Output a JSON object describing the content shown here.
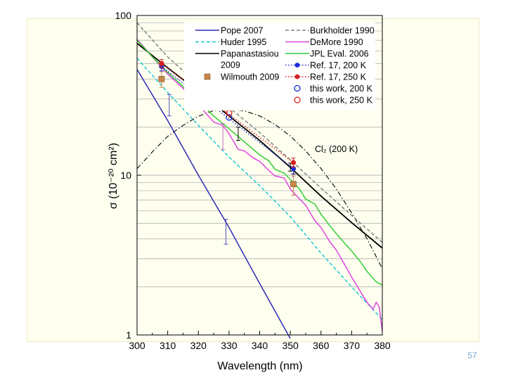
{
  "page": {
    "number": "57"
  },
  "chart_data": {
    "type": "line",
    "xlabel": "Wavelength (nm)",
    "ylabel": "σ (10⁻²⁰ cm²)",
    "xlim": [
      300,
      380
    ],
    "ylim": [
      1,
      100
    ],
    "yscale": "log",
    "x_ticks": [
      300,
      310,
      320,
      330,
      340,
      350,
      360,
      370,
      380
    ],
    "x_tick_labels": [
      "300",
      "310",
      "320",
      "330",
      "340",
      "350",
      "360",
      "370",
      "380"
    ],
    "y_ticks": [
      1,
      10,
      100
    ],
    "y_tick_labels": [
      "1",
      "10",
      "100"
    ],
    "grid": true,
    "legend_position": "top",
    "series": [
      {
        "name": "Pope 2007",
        "style": "solid",
        "color": "#2b2bb5",
        "x": [
          300,
          310,
          320,
          330,
          340,
          350
        ],
        "y": [
          46,
          22,
          10,
          4.7,
          2.1,
          0.95
        ]
      },
      {
        "name": "Huder 1995",
        "style": "dash",
        "color": "#1ec8d8",
        "x": [
          300,
          310,
          320,
          330,
          340,
          350,
          360,
          370,
          380
        ],
        "y": [
          54,
          33,
          20.5,
          13,
          8.6,
          5.5,
          3.25,
          2.0,
          1.25
        ]
      },
      {
        "name": "Papanastasiou 2009",
        "style": "solid",
        "color": "#000000",
        "x": [
          300,
          310,
          320,
          330,
          340,
          350,
          360,
          370,
          380
        ],
        "y": [
          67,
          47,
          33.5,
          23.5,
          16.5,
          11.2,
          7.4,
          5.05,
          3.5
        ]
      },
      {
        "name": "Wilmouth 2009",
        "style": "markers",
        "color": "#c8884a",
        "marker": "square",
        "x": [
          308,
          351
        ],
        "y": [
          40,
          8.8
        ],
        "err": [
          4.5,
          1.3
        ]
      },
      {
        "name": "Burkholder 1990",
        "style": "dash",
        "color": "#808080",
        "x": [
          300,
          310,
          320,
          330,
          340,
          350,
          360,
          370,
          380
        ],
        "y": [
          90,
          55,
          37,
          26.5,
          18.5,
          12.5,
          8.3,
          5.6,
          3.8
        ]
      },
      {
        "name": "DeMore 1990",
        "style": "solid",
        "color": "#dd44dd",
        "x": [
          300,
          305,
          310,
          315,
          320,
          322,
          325,
          328,
          330,
          333,
          335,
          338,
          340,
          343,
          345,
          348,
          350,
          353,
          355,
          358,
          360,
          363,
          365,
          368,
          370,
          373,
          375,
          377,
          378,
          379,
          380
        ],
        "y": [
          71,
          55,
          43,
          35,
          27.5,
          25,
          21.5,
          20.5,
          18.2,
          14.5,
          14.2,
          12.8,
          12.2,
          10.7,
          9.9,
          9.6,
          8.2,
          7.1,
          6.5,
          5.2,
          4.7,
          3.8,
          3.4,
          2.7,
          2.3,
          1.85,
          1.6,
          1.45,
          1.6,
          1.5,
          1.05
        ]
      },
      {
        "name": "JPL Eval. 2006",
        "style": "solid",
        "color": "#33cc33",
        "x": [
          300,
          305,
          310,
          315,
          320,
          325,
          330,
          335,
          340,
          343,
          345,
          348,
          350,
          353,
          355,
          358,
          360,
          363,
          365,
          368,
          370,
          373,
          375,
          378,
          380
        ],
        "y": [
          70,
          55,
          44,
          36,
          29,
          23.5,
          19.5,
          16.2,
          13.4,
          12.3,
          10.9,
          10.3,
          9.4,
          8.2,
          7.1,
          6.6,
          5.7,
          4.8,
          4.3,
          3.7,
          3.35,
          2.85,
          2.5,
          2.15,
          2.05
        ]
      },
      {
        "name": "Ref. 17, 200 K",
        "style": "dot",
        "color": "#1a2bd6",
        "marker": "circle-filled",
        "x": [
          308,
          351
        ],
        "y": [
          48,
          11
        ],
        "err": [
          3,
          0.8
        ]
      },
      {
        "name": "Ref. 17, 250 K",
        "style": "dot",
        "color": "#d62020",
        "marker": "circle-filled",
        "x": [
          308,
          351
        ],
        "y": [
          50,
          12
        ],
        "err": [
          3,
          0.8
        ]
      },
      {
        "name": "this work, 200 K",
        "style": "markers",
        "color": "#1a2bd6",
        "marker": "circle-open",
        "x": [
          330
        ],
        "y": [
          23
        ]
      },
      {
        "name": "this work, 250 K",
        "style": "markers",
        "color": "#d62020",
        "marker": "circle-open",
        "x": [
          330
        ],
        "y": [
          24.5
        ]
      }
    ],
    "extra_error_bars": [
      {
        "x": 310.5,
        "y_low": 23.5,
        "y_high": 32,
        "color": "#5050c0"
      },
      {
        "x": 329,
        "y_low": 3.7,
        "y_high": 5.3,
        "color": "#5050c0"
      },
      {
        "x": 328,
        "y_low": 14.5,
        "y_high": 21,
        "color": "#c070c0"
      },
      {
        "x": 333,
        "y_low": 16.5,
        "y_high": 20,
        "color": "#000000"
      },
      {
        "x": 350,
        "y_low": 10.6,
        "y_high": 11.9,
        "color": "#000000"
      },
      {
        "x": 351,
        "y_low": 7.5,
        "y_high": 9.8,
        "color": "#909090"
      }
    ],
    "reference_curve": {
      "name": "Cl₂ (200 K)",
      "style": "dashdot",
      "color": "#000000",
      "peak_x": 330,
      "peak_y": 26,
      "x": [
        300,
        305,
        310,
        315,
        320,
        325,
        330,
        335,
        340,
        345,
        350,
        355,
        360,
        365,
        370,
        375,
        380
      ],
      "y": [
        11,
        14,
        17.5,
        20.5,
        23.4,
        25.4,
        26,
        25.3,
        23.5,
        20.8,
        17.6,
        14.2,
        11,
        8.2,
        5.8,
        4.0,
        2.6
      ]
    },
    "legend_column_1": [
      "Pope 2007",
      "Huder 1995",
      "Papanastasiou 2009",
      "Wilmouth 2009"
    ],
    "legend_column_2": [
      "Burkholder 1990",
      "DeMore 1990",
      "JPL Eval. 2006",
      "Ref. 17, 200 K",
      "Ref. 17, 250 K",
      "this work, 200 K",
      "this work, 250 K"
    ]
  }
}
